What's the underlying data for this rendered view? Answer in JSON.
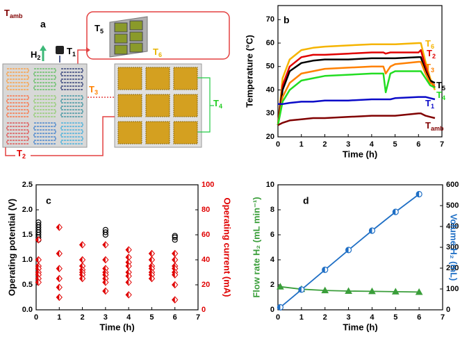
{
  "diagram": {
    "panel_label": "a",
    "labels": {
      "t_amb": {
        "main": "T",
        "sub": "amb"
      },
      "h2": {
        "main": "H",
        "sub": "2"
      },
      "t1": {
        "main": "T",
        "sub": "1"
      },
      "t5": {
        "main": "T",
        "sub": "5"
      },
      "t6": {
        "main": "T",
        "sub": "6"
      },
      "t3": {
        "main": "T",
        "sub": "3"
      },
      "t4": {
        "main": "T",
        "sub": "4"
      },
      "t2": {
        "main": "T",
        "sub": "2"
      }
    }
  },
  "chart_data": [
    {
      "type": "line",
      "panel_label": "b",
      "x_label": "Time (h)",
      "y_label": "Temperature (°C)",
      "x": [
        0,
        0.2,
        0.5,
        1,
        1.5,
        2,
        3,
        4,
        4.5,
        4.6,
        4.8,
        5,
        6,
        6.1,
        6.3,
        6.5,
        6.7
      ],
      "xlim": [
        0,
        7
      ],
      "xticks": [
        0,
        1,
        2,
        3,
        4,
        5,
        6,
        7
      ],
      "ylim": [
        20,
        76
      ],
      "yticks": [
        20,
        30,
        40,
        50,
        60,
        70
      ],
      "series": [
        {
          "name": {
            "main": "T",
            "sub": "6"
          },
          "color": "#f5b400",
          "values": [
            25,
            45,
            53,
            57,
            58,
            58.5,
            59,
            59.5,
            59.5,
            59.5,
            59.5,
            59.5,
            60,
            60,
            52,
            45,
            40
          ]
        },
        {
          "name": {
            "main": "T",
            "sub": "2"
          },
          "color": "#e00000",
          "values": [
            25,
            42,
            50,
            54,
            55,
            55,
            55.5,
            56,
            56,
            55.5,
            56,
            56,
            56,
            57,
            50,
            44,
            41
          ]
        },
        {
          "name": {
            "main": "T",
            "sub": "5"
          },
          "color": "#000000",
          "values": [
            25,
            40,
            48,
            51.5,
            52.5,
            53,
            53,
            53.5,
            53.5,
            53.5,
            53.5,
            53.5,
            54,
            54,
            48,
            44,
            43
          ]
        },
        {
          "name": {
            "main": "T",
            "sub": "3"
          },
          "color": "#ff8000",
          "values": [
            25,
            37,
            43,
            47,
            48,
            49,
            49.5,
            50,
            50,
            47,
            50,
            51,
            52,
            52,
            47,
            43,
            42
          ]
        },
        {
          "name": {
            "main": "T",
            "sub": "4"
          },
          "color": "#22dd22",
          "values": [
            25,
            35,
            40,
            44,
            45,
            46,
            46.5,
            47,
            47,
            39,
            47,
            48,
            48,
            48,
            45,
            42,
            41
          ]
        },
        {
          "name": {
            "main": "T",
            "sub": "1"
          },
          "color": "#0a0ac8",
          "values": [
            34,
            34,
            34.5,
            35,
            35,
            35.5,
            35.5,
            36,
            36,
            36,
            36,
            36.5,
            37,
            37,
            37,
            36.5,
            36
          ]
        },
        {
          "name": {
            "main": "T",
            "sub": "amb"
          },
          "color": "#800000",
          "values": [
            25,
            26,
            27,
            27.5,
            28,
            28,
            28.5,
            29,
            29,
            29,
            29,
            29,
            30,
            30,
            29,
            28.5,
            28
          ]
        }
      ]
    },
    {
      "type": "scatter",
      "panel_label": "c",
      "x_label": "Time (h)",
      "y_label": "Operating potential (V)",
      "y2_label": "Operating current (mA)",
      "xlim": [
        0,
        7
      ],
      "xticks": [
        0,
        1,
        2,
        3,
        4,
        5,
        6,
        7
      ],
      "ylim": [
        0,
        2.5
      ],
      "yticks": [
        {
          "value": 0,
          "label": "0.0"
        },
        0.5,
        {
          "value": 1,
          "label": "1.0"
        },
        1.5,
        {
          "value": 2,
          "label": "2.0"
        },
        2.5
      ],
      "y2lim": [
        0,
        100
      ],
      "y2ticks": [
        0,
        20,
        40,
        60,
        80,
        100
      ],
      "series": [
        {
          "marker": "circle",
          "color": "#000000",
          "x": [
            0.1,
            0.1,
            0.1,
            0.1,
            0.1,
            0.1,
            0.1,
            0.1,
            3,
            3,
            3,
            6,
            6,
            6
          ],
          "values": [
            1.4,
            1.45,
            1.5,
            1.55,
            1.6,
            1.65,
            1.7,
            1.75,
            1.5,
            1.55,
            1.6,
            1.4,
            1.45,
            1.48
          ]
        },
        {
          "marker": "diamond",
          "color": "#e00000",
          "axis": "y2",
          "x": [
            0.1,
            0.1,
            0.1,
            0.1,
            0.1,
            0.1,
            0.1,
            0.1,
            1,
            1,
            1,
            1,
            1,
            1,
            2,
            2,
            2,
            2,
            2,
            2,
            2,
            3,
            3,
            3,
            3,
            3,
            3,
            3,
            3,
            4,
            4,
            4,
            4,
            4,
            4,
            4,
            4,
            5,
            5,
            5,
            5,
            5,
            5,
            5,
            6,
            6,
            6,
            6,
            6,
            6,
            6,
            6
          ],
          "values": [
            56,
            40,
            35,
            33,
            30,
            28,
            25,
            22,
            66,
            45,
            33,
            25,
            18,
            10,
            52,
            40,
            35,
            32,
            30,
            28,
            25,
            52,
            40,
            33,
            30,
            28,
            25,
            22,
            15,
            48,
            42,
            38,
            35,
            30,
            27,
            22,
            12,
            45,
            40,
            35,
            33,
            30,
            28,
            25,
            45,
            40,
            35,
            33,
            30,
            28,
            20,
            8
          ]
        }
      ]
    },
    {
      "type": "line",
      "panel_label": "d",
      "x_label": "Time (h)",
      "y_label": "Flow rate H₂ (mL min⁻¹)",
      "y2_label": "Volume H₂ (mL)",
      "xlim": [
        0,
        7
      ],
      "xticks": [
        0,
        1,
        2,
        3,
        4,
        5,
        6,
        7
      ],
      "ylim": [
        0,
        10
      ],
      "yticks": [
        0,
        2,
        4,
        6,
        8,
        10
      ],
      "y2lim": [
        0,
        600
      ],
      "y2ticks": [
        0,
        100,
        200,
        300,
        400,
        500,
        600
      ],
      "series": [
        {
          "marker": "triangle",
          "color": "#3a9e3a",
          "x": [
            0.1,
            1,
            2,
            3,
            4,
            5,
            6
          ],
          "values": [
            1.85,
            1.65,
            1.55,
            1.5,
            1.48,
            1.45,
            1.42
          ]
        },
        {
          "marker": "halfcircle",
          "color": "#1f6fc5",
          "axis": "y2",
          "x": [
            0.1,
            1,
            2,
            3,
            4,
            5,
            6
          ],
          "values": [
            12,
            97,
            192,
            287,
            380,
            470,
            555
          ]
        }
      ]
    }
  ]
}
